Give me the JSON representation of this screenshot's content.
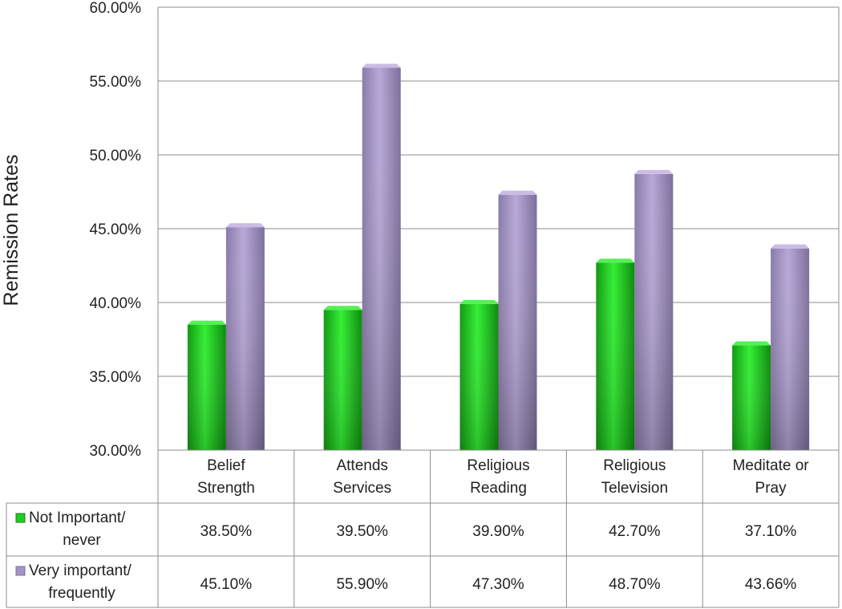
{
  "chart_data": {
    "type": "bar",
    "title": "",
    "xlabel": "",
    "ylabel": "Remission Rates",
    "ylim": [
      0.3,
      0.6
    ],
    "yticks": [
      "30.00%",
      "35.00%",
      "40.00%",
      "45.00%",
      "50.00%",
      "55.00%",
      "60.00%"
    ],
    "ytick_values": [
      0.3,
      0.35,
      0.4,
      0.45,
      0.5,
      0.55,
      0.6
    ],
    "grid": true,
    "legend": "data-table",
    "categories": [
      [
        "Belief",
        "Strength"
      ],
      [
        "Attends",
        "Services"
      ],
      [
        "Religious",
        "Reading"
      ],
      [
        "Religious",
        "Television"
      ],
      [
        "Meditate or",
        "Pray"
      ]
    ],
    "series": [
      {
        "name": [
          "Not Important/",
          "never"
        ],
        "color": "#22cc22",
        "values": [
          0.385,
          0.395,
          0.399,
          0.427,
          0.371
        ],
        "labels": [
          "38.50%",
          "39.50%",
          "39.90%",
          "42.70%",
          "37.10%"
        ]
      },
      {
        "name": [
          "Very important/",
          "frequently"
        ],
        "color": "#a493c8",
        "values": [
          0.451,
          0.559,
          0.473,
          0.487,
          0.4366
        ],
        "labels": [
          "45.10%",
          "55.90%",
          "47.30%",
          "48.70%",
          "43.66%"
        ]
      }
    ]
  }
}
